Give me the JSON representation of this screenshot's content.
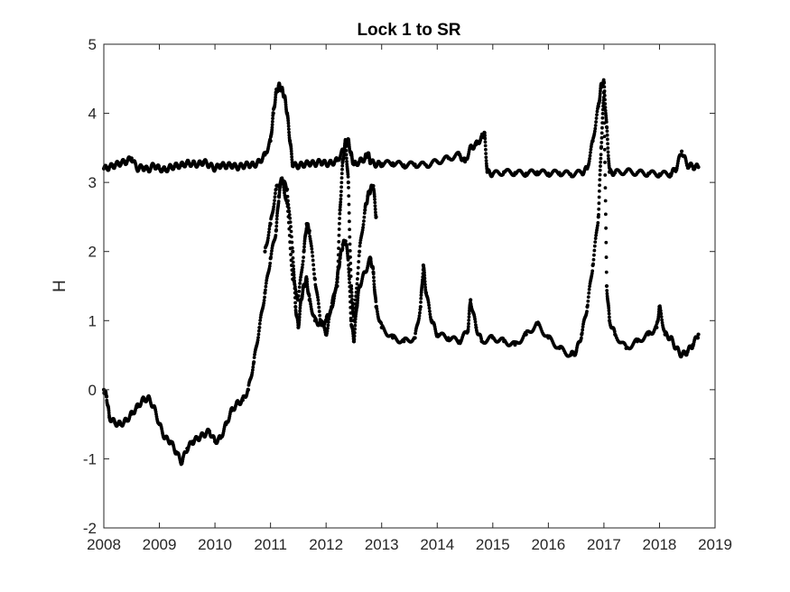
{
  "chart_data": {
    "type": "scatter",
    "title": "Lock 1 to SR",
    "xlabel": "",
    "ylabel": "H",
    "xlim": [
      2008,
      2019
    ],
    "ylim": [
      -2,
      5
    ],
    "grid": false,
    "legend": "none",
    "xticks": [
      "2008",
      "2009",
      "2010",
      "2011",
      "2012",
      "2013",
      "2014",
      "2015",
      "2016",
      "2017",
      "2018",
      "2019"
    ],
    "yticks": [
      "-2",
      "-1",
      "0",
      "1",
      "2",
      "3",
      "4",
      "5"
    ],
    "marker_color": "#000000",
    "series": [
      {
        "name": "",
        "x": [
          2008.0,
          2008.1,
          2008.2,
          2008.3,
          2008.4,
          2008.5,
          2008.6,
          2008.7,
          2008.8,
          2008.9,
          2009.0,
          2009.1,
          2009.2,
          2009.3,
          2009.4,
          2009.5,
          2009.6,
          2009.7,
          2009.8,
          2009.9,
          2010.0,
          2010.1,
          2010.2,
          2010.3,
          2010.4,
          2010.5,
          2010.6,
          2010.7,
          2010.8,
          2010.9,
          2011.0,
          2011.05,
          2011.1,
          2011.15,
          2011.2,
          2011.25,
          2011.3,
          2011.35,
          2011.4,
          2011.5,
          2011.6,
          2011.7,
          2011.8,
          2011.9,
          2012.0,
          2012.1,
          2012.2,
          2012.3,
          2012.35,
          2012.4,
          2012.45,
          2012.5,
          2012.6,
          2012.7,
          2012.75,
          2012.8,
          2012.9,
          2013.0,
          2013.2,
          2013.4,
          2013.6,
          2013.8,
          2014.0,
          2014.2,
          2014.4,
          2014.5,
          2014.6,
          2014.7,
          2014.8,
          2014.85,
          2014.9,
          2015.0,
          2015.2,
          2015.4,
          2015.6,
          2015.8,
          2016.0,
          2016.2,
          2016.4,
          2016.6,
          2016.7,
          2016.8,
          2016.9,
          2016.95,
          2017.0,
          2017.05,
          2017.1,
          2017.2,
          2017.4,
          2017.6,
          2017.8,
          2018.0,
          2018.2,
          2018.3,
          2018.4,
          2018.5,
          2018.6,
          2018.7
        ],
        "y": [
          3.2,
          3.22,
          3.25,
          3.28,
          3.3,
          3.35,
          3.2,
          3.22,
          3.18,
          3.25,
          3.2,
          3.18,
          3.22,
          3.24,
          3.25,
          3.28,
          3.27,
          3.26,
          3.3,
          3.25,
          3.2,
          3.25,
          3.24,
          3.25,
          3.22,
          3.24,
          3.26,
          3.25,
          3.3,
          3.4,
          3.6,
          4.0,
          4.3,
          4.4,
          4.35,
          4.25,
          4.0,
          3.6,
          3.25,
          3.24,
          3.26,
          3.28,
          3.27,
          3.3,
          3.27,
          3.28,
          3.32,
          3.45,
          3.55,
          3.6,
          3.4,
          3.26,
          3.3,
          3.35,
          3.42,
          3.3,
          3.26,
          3.27,
          3.28,
          3.25,
          3.26,
          3.25,
          3.3,
          3.35,
          3.4,
          3.3,
          3.5,
          3.55,
          3.65,
          3.72,
          3.15,
          3.12,
          3.15,
          3.14,
          3.13,
          3.15,
          3.13,
          3.14,
          3.12,
          3.14,
          3.2,
          3.6,
          4.1,
          4.4,
          4.45,
          3.8,
          3.15,
          3.14,
          3.16,
          3.14,
          3.13,
          3.12,
          3.12,
          3.2,
          3.45,
          3.25,
          3.23,
          3.22
        ]
      },
      {
        "name": "",
        "x": [
          2008.0,
          2008.05,
          2008.1,
          2008.2,
          2008.3,
          2008.4,
          2008.5,
          2008.6,
          2008.7,
          2008.8,
          2008.9,
          2009.0,
          2009.1,
          2009.2,
          2009.3,
          2009.4,
          2009.5,
          2009.6,
          2009.7,
          2009.8,
          2009.9,
          2010.0,
          2010.1,
          2010.2,
          2010.3,
          2010.4,
          2010.5,
          2010.6,
          2010.7,
          2010.8,
          2010.9,
          2011.0,
          2011.1,
          2011.15,
          2011.2,
          2011.3,
          2011.4,
          2011.45,
          2011.5,
          2011.55,
          2011.6,
          2011.65,
          2011.7,
          2011.8,
          2011.9,
          2012.0,
          2012.1,
          2012.2,
          2012.25,
          2012.3,
          2012.35,
          2012.4,
          2012.45,
          2012.5,
          2012.55,
          2012.6,
          2012.7,
          2012.8,
          2012.85,
          2012.9,
          2013.0,
          2013.2,
          2013.4,
          2013.6,
          2013.7,
          2013.75,
          2013.8,
          2013.9,
          2014.0,
          2014.2,
          2014.4,
          2014.55,
          2014.6,
          2014.7,
          2014.8,
          2015.0,
          2015.2,
          2015.4,
          2015.6,
          2015.8,
          2016.0,
          2016.2,
          2016.4,
          2016.5,
          2016.6,
          2016.7,
          2016.8,
          2016.9,
          2016.95,
          2017.0,
          2017.05,
          2017.1,
          2017.2,
          2017.4,
          2017.6,
          2017.8,
          2017.95,
          2018.0,
          2018.1,
          2018.2,
          2018.3,
          2018.4,
          2018.5,
          2018.6,
          2018.7
        ],
        "y": [
          0.0,
          -0.1,
          -0.4,
          -0.48,
          -0.5,
          -0.45,
          -0.35,
          -0.25,
          -0.15,
          -0.12,
          -0.25,
          -0.5,
          -0.7,
          -0.75,
          -0.9,
          -1.05,
          -0.85,
          -0.75,
          -0.7,
          -0.65,
          -0.6,
          -0.75,
          -0.7,
          -0.5,
          -0.3,
          -0.2,
          -0.15,
          0.0,
          0.4,
          0.9,
          1.4,
          1.9,
          2.3,
          2.8,
          3.05,
          2.9,
          2.0,
          1.2,
          0.9,
          1.3,
          1.5,
          1.6,
          1.3,
          1.0,
          0.95,
          1.0,
          1.2,
          1.6,
          1.9,
          2.1,
          2.15,
          1.9,
          1.0,
          0.7,
          1.2,
          1.5,
          1.7,
          1.9,
          1.7,
          1.2,
          0.9,
          0.75,
          0.7,
          0.75,
          1.2,
          1.8,
          1.4,
          1.0,
          0.8,
          0.75,
          0.7,
          0.85,
          1.3,
          0.9,
          0.7,
          0.75,
          0.7,
          0.65,
          0.8,
          0.95,
          0.75,
          0.6,
          0.5,
          0.55,
          0.8,
          1.2,
          1.8,
          2.5,
          3.5,
          4.3,
          1.5,
          1.0,
          0.8,
          0.6,
          0.7,
          0.8,
          0.9,
          1.2,
          0.8,
          0.75,
          0.6,
          0.5,
          0.55,
          0.65,
          0.8
        ]
      },
      {
        "name": "",
        "x": [
          2010.9,
          2011.0,
          2011.1,
          2011.2,
          2011.3,
          2011.4,
          2011.5,
          2011.6,
          2011.65,
          2011.7,
          2011.8,
          2011.9,
          2012.0,
          2012.1,
          2012.2,
          2012.25,
          2012.3,
          2012.35,
          2012.4,
          2012.45,
          2012.5,
          2012.6,
          2012.7,
          2012.75,
          2012.8,
          2012.85,
          2012.9
        ],
        "y": [
          2.0,
          2.4,
          2.9,
          3.05,
          2.7,
          1.6,
          1.3,
          2.0,
          2.4,
          2.3,
          1.6,
          1.0,
          0.8,
          1.2,
          1.5,
          2.6,
          3.3,
          3.6,
          3.0,
          1.5,
          1.0,
          2.0,
          2.6,
          2.8,
          2.9,
          2.95,
          2.5
        ]
      }
    ]
  }
}
